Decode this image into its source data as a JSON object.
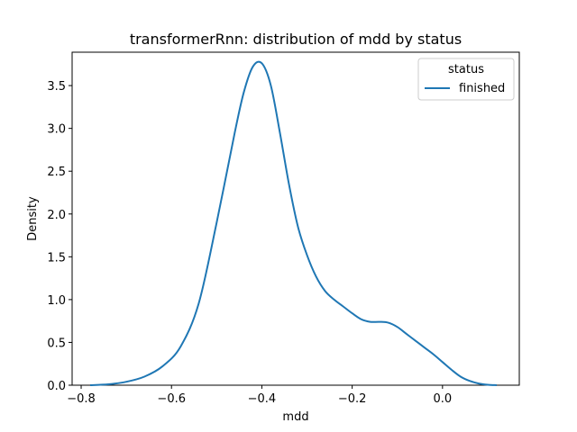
{
  "chart_data": {
    "type": "line",
    "title": "transformerRnn: distribution of mdd by status",
    "xlabel": "mdd",
    "ylabel": "Density",
    "xlim": [
      -0.82,
      0.17
    ],
    "ylim": [
      0,
      3.89
    ],
    "x_ticks": [
      -0.8,
      -0.6,
      -0.4,
      -0.2,
      0.0
    ],
    "x_tick_labels": [
      "−0.8",
      "−0.6",
      "−0.4",
      "−0.2",
      "0.0"
    ],
    "y_ticks": [
      0,
      0.5,
      1.0,
      1.5,
      2.0,
      2.5,
      3.0,
      3.5
    ],
    "y_tick_labels": [
      "0.0",
      "0.5",
      "1.0",
      "1.5",
      "2.0",
      "2.5",
      "3.0",
      "3.5"
    ],
    "grid": false,
    "legend": {
      "title": "status",
      "placement": "top-right"
    },
    "series": [
      {
        "name": "finished",
        "color": "#1f77b4",
        "x": [
          -0.78,
          -0.74,
          -0.7,
          -0.66,
          -0.62,
          -0.58,
          -0.54,
          -0.5,
          -0.46,
          -0.44,
          -0.42,
          -0.4,
          -0.38,
          -0.36,
          -0.34,
          -0.32,
          -0.3,
          -0.28,
          -0.26,
          -0.24,
          -0.22,
          -0.2,
          -0.18,
          -0.16,
          -0.14,
          -0.12,
          -0.1,
          -0.08,
          -0.06,
          -0.04,
          -0.02,
          0.0,
          0.02,
          0.04,
          0.06,
          0.08,
          0.1,
          0.12
        ],
        "y": [
          0.0,
          0.01,
          0.04,
          0.1,
          0.22,
          0.45,
          0.95,
          1.9,
          2.95,
          3.42,
          3.72,
          3.76,
          3.5,
          2.95,
          2.35,
          1.85,
          1.52,
          1.27,
          1.1,
          1.0,
          0.92,
          0.84,
          0.77,
          0.74,
          0.74,
          0.73,
          0.68,
          0.6,
          0.52,
          0.44,
          0.36,
          0.27,
          0.18,
          0.1,
          0.05,
          0.02,
          0.005,
          0.0
        ]
      }
    ]
  }
}
